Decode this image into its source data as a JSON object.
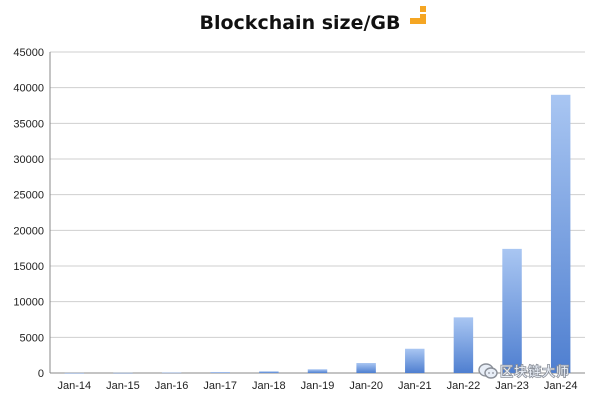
{
  "chart_data": {
    "type": "bar",
    "title": "Blockchain size/GB",
    "xlabel": "",
    "ylabel": "",
    "categories": [
      "Jan-14",
      "Jan-15",
      "Jan-16",
      "Jan-17",
      "Jan-18",
      "Jan-19",
      "Jan-20",
      "Jan-21",
      "Jan-22",
      "Jan-23",
      "Jan-24"
    ],
    "values": [
      15,
      30,
      55,
      110,
      230,
      520,
      1400,
      3400,
      7800,
      17400,
      39000
    ],
    "ylim": [
      0,
      45000
    ],
    "yticks": [
      0,
      5000,
      10000,
      15000,
      20000,
      25000,
      30000,
      35000,
      40000,
      45000
    ],
    "grid": true,
    "legend": "none",
    "bar_color_top": "#a9c6f2",
    "bar_color_bottom": "#4f7fd0"
  },
  "branding": {
    "logo_icon": "orange-blocks-logo-icon",
    "logo_color": "#f5a623",
    "watermark_icon": "wechat-icon",
    "watermark_text": "区块链大师"
  }
}
